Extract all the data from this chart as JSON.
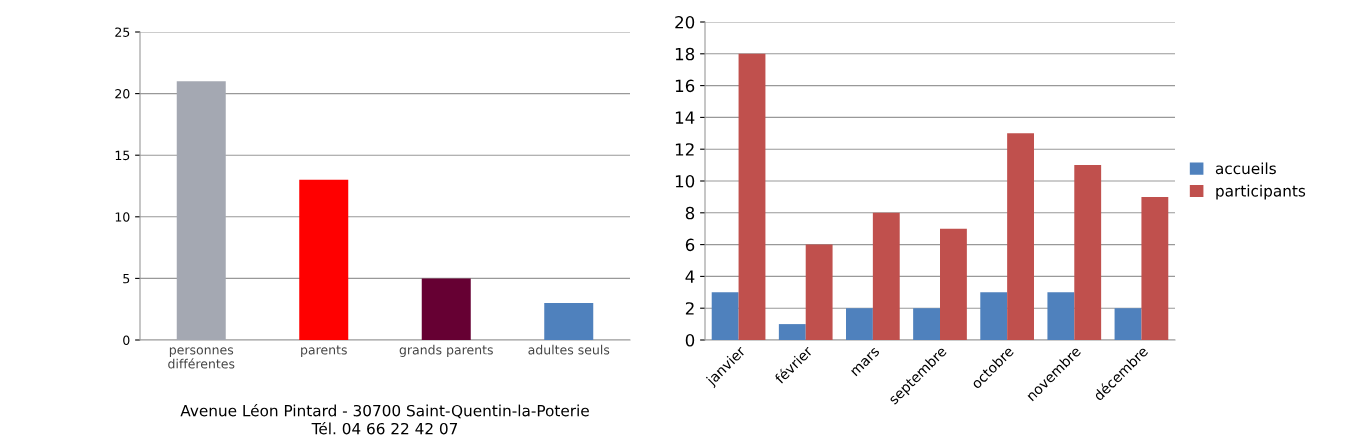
{
  "chart_data": [
    {
      "type": "bar",
      "categories": [
        "personnes différentes",
        "parents",
        "grands parents",
        "adultes seuls"
      ],
      "values": [
        21,
        13,
        5,
        3
      ],
      "colors": [
        "#a4a8b2",
        "#ff0000",
        "#660033",
        "#4f81bd"
      ],
      "ylim": [
        0,
        25
      ],
      "yticks": [
        0,
        5,
        10,
        15,
        20,
        25
      ],
      "grid": "y",
      "legend": false,
      "annotations": [
        "Avenue Léon Pintard - 30700 Saint-Quentin-la-Poterie",
        "Tél. 04 66 22 42 07"
      ]
    },
    {
      "type": "bar",
      "categories": [
        "janvier",
        "février",
        "mars",
        "septembre",
        "octobre",
        "novembre",
        "décembre"
      ],
      "series": [
        {
          "name": "accueils",
          "color": "#4f81bd",
          "values": [
            3,
            1,
            2,
            2,
            3,
            3,
            2
          ]
        },
        {
          "name": "participants",
          "color": "#c0504d",
          "values": [
            18,
            6,
            8,
            7,
            13,
            11,
            9
          ]
        }
      ],
      "ylim": [
        0,
        20
      ],
      "yticks": [
        0,
        2,
        4,
        6,
        8,
        10,
        12,
        14,
        16,
        18,
        20
      ],
      "grid": "y",
      "legend": "right"
    }
  ]
}
